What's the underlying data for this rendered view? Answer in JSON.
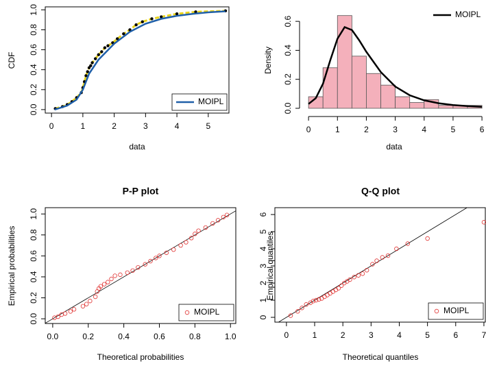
{
  "chart_data": [
    {
      "type": "line",
      "x_label": "data",
      "y_label": "CDF",
      "xlim": [
        -0.2,
        5.66
      ],
      "ylim": [
        -0.035,
        1.03
      ],
      "xticks": [
        0,
        1,
        2,
        3,
        4,
        5
      ],
      "yticks": [
        {
          "value": 0,
          "label": "0.0"
        },
        0.2,
        0.4,
        0.6,
        0.8,
        {
          "value": 1,
          "label": "1.0"
        }
      ],
      "legend": "bottomright",
      "points": {
        "color": "#e8d21a",
        "x": [
          0.12,
          0.35,
          0.5,
          0.65,
          0.8,
          0.95,
          1.0,
          1.05,
          1.1,
          1.15,
          1.2,
          1.25,
          1.3,
          1.4,
          1.5,
          1.6,
          1.7,
          1.8,
          1.95,
          2.1,
          2.3,
          2.5,
          2.7,
          2.9,
          3.2,
          3.5,
          4.0,
          4.6,
          5.55
        ],
        "values": [
          0.01,
          0.03,
          0.05,
          0.08,
          0.12,
          0.17,
          0.22,
          0.28,
          0.34,
          0.38,
          0.42,
          0.44,
          0.47,
          0.51,
          0.55,
          0.58,
          0.62,
          0.64,
          0.67,
          0.71,
          0.76,
          0.8,
          0.85,
          0.88,
          0.91,
          0.93,
          0.96,
          0.98,
          0.99
        ]
      },
      "series": [
        {
          "name": "MOIPL",
          "color": "#1f5fa8",
          "x": [
            0.1,
            0.5,
            0.8,
            1.0,
            1.2,
            1.5,
            2.0,
            2.5,
            3.0,
            3.5,
            4.0,
            4.5,
            5.0,
            5.55
          ],
          "values": [
            0.0,
            0.04,
            0.1,
            0.2,
            0.36,
            0.5,
            0.66,
            0.78,
            0.86,
            0.91,
            0.94,
            0.96,
            0.975,
            0.985
          ]
        }
      ]
    },
    {
      "type": "histogram",
      "x_label": "data",
      "y_label": "Density",
      "xlim": [
        -0.24,
        6.14
      ],
      "ylim": [
        0,
        0.7
      ],
      "xticks": [
        0,
        1,
        2,
        3,
        4,
        5,
        6
      ],
      "yticks": [
        {
          "value": 0,
          "label": "0.0"
        },
        0.2,
        0.4,
        0.6
      ],
      "legend": "topright",
      "color": "#f4b0bb",
      "bins": [
        0,
        0.5,
        1,
        1.5,
        2,
        2.5,
        3,
        3.5,
        4,
        4.5,
        5,
        5.5,
        6
      ],
      "values": [
        0.08,
        0.28,
        0.64,
        0.36,
        0.24,
        0.16,
        0.08,
        0.04,
        0.06,
        0.02,
        0.02,
        0.02
      ],
      "series": [
        {
          "name": "MOIPL",
          "color": "#000000",
          "x": [
            0,
            0.25,
            0.5,
            0.75,
            1.0,
            1.25,
            1.5,
            1.75,
            2.0,
            2.5,
            3.0,
            3.5,
            4.0,
            4.5,
            5.0,
            5.5,
            6.0
          ],
          "values": [
            0.03,
            0.07,
            0.17,
            0.33,
            0.48,
            0.56,
            0.54,
            0.47,
            0.39,
            0.25,
            0.15,
            0.09,
            0.055,
            0.035,
            0.022,
            0.015,
            0.01
          ]
        }
      ]
    },
    {
      "type": "scatter",
      "title": "P-P plot",
      "x_label": "Theoretical probabilities",
      "y_label": "Empirical probabilities",
      "xlim": [
        -0.042,
        1.03
      ],
      "ylim": [
        -0.045,
        1.06
      ],
      "xticks": [
        {
          "value": 0,
          "label": "0.0"
        },
        0.2,
        0.4,
        0.6,
        0.8,
        {
          "value": 1,
          "label": "1.0"
        }
      ],
      "yticks": [
        {
          "value": 0,
          "label": "0.0"
        },
        0.2,
        0.4,
        0.6,
        0.8,
        {
          "value": 1,
          "label": "1.0"
        }
      ],
      "legend": "bottomright",
      "series": [
        {
          "name": "MOIPL",
          "color": "#e0302f",
          "x": [
            0.01,
            0.03,
            0.05,
            0.07,
            0.1,
            0.12,
            0.17,
            0.19,
            0.21,
            0.24,
            0.25,
            0.26,
            0.27,
            0.29,
            0.31,
            0.33,
            0.35,
            0.38,
            0.42,
            0.45,
            0.48,
            0.52,
            0.55,
            0.58,
            0.6,
            0.64,
            0.68,
            0.72,
            0.75,
            0.78,
            0.8,
            0.82,
            0.86,
            0.9,
            0.93,
            0.96,
            0.98
          ],
          "values": [
            0.01,
            0.02,
            0.04,
            0.05,
            0.07,
            0.09,
            0.12,
            0.14,
            0.17,
            0.21,
            0.26,
            0.29,
            0.31,
            0.33,
            0.35,
            0.38,
            0.41,
            0.42,
            0.44,
            0.46,
            0.49,
            0.52,
            0.55,
            0.58,
            0.6,
            0.63,
            0.66,
            0.7,
            0.73,
            0.77,
            0.81,
            0.84,
            0.87,
            0.91,
            0.94,
            0.97,
            0.99
          ]
        }
      ]
    },
    {
      "type": "scatter",
      "title": "Q-Q plot",
      "x_label": "Theoretical quantiles",
      "y_label": "Empirical quantiles",
      "xlim": [
        -0.41,
        7.05
      ],
      "ylim": [
        -0.28,
        6.4
      ],
      "xticks": [
        0,
        1,
        2,
        3,
        4,
        5,
        6,
        7
      ],
      "yticks": [
        0,
        1,
        2,
        3,
        4,
        5,
        6
      ],
      "legend": "bottomright",
      "series": [
        {
          "name": "MOIPL",
          "color": "#e0302f",
          "x": [
            0.15,
            0.4,
            0.55,
            0.7,
            0.85,
            0.95,
            1.05,
            1.15,
            1.25,
            1.35,
            1.45,
            1.55,
            1.65,
            1.75,
            1.85,
            1.95,
            2.05,
            2.15,
            2.25,
            2.4,
            2.55,
            2.7,
            2.85,
            3.05,
            3.2,
            3.4,
            3.6,
            3.9,
            4.3,
            5.0,
            7.0
          ],
          "values": [
            0.1,
            0.35,
            0.55,
            0.75,
            0.85,
            0.95,
            1.0,
            1.05,
            1.1,
            1.2,
            1.3,
            1.4,
            1.5,
            1.6,
            1.7,
            1.85,
            2.0,
            2.1,
            2.2,
            2.35,
            2.45,
            2.55,
            2.75,
            3.1,
            3.3,
            3.5,
            3.6,
            4.0,
            4.3,
            4.6,
            5.55
          ]
        }
      ]
    }
  ]
}
